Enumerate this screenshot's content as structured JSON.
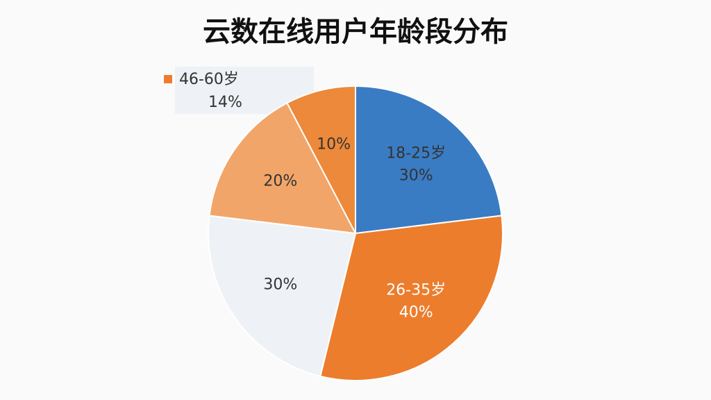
{
  "chart_data": {
    "type": "pie",
    "title": "云数在线用户年龄段分布",
    "categories": [
      "18-25岁",
      "26-35岁",
      null,
      null,
      null
    ],
    "values": [
      30,
      40,
      30,
      20,
      10
    ],
    "value_labels": [
      "30%",
      "40%",
      "30%",
      "20%",
      "10%"
    ],
    "colors": [
      "#3a7cc3",
      "#ec7d2c",
      "#eef2f6",
      "#f2a568",
      "#ec893a"
    ],
    "annotations": [
      "46-60岁",
      "14%"
    ]
  }
}
